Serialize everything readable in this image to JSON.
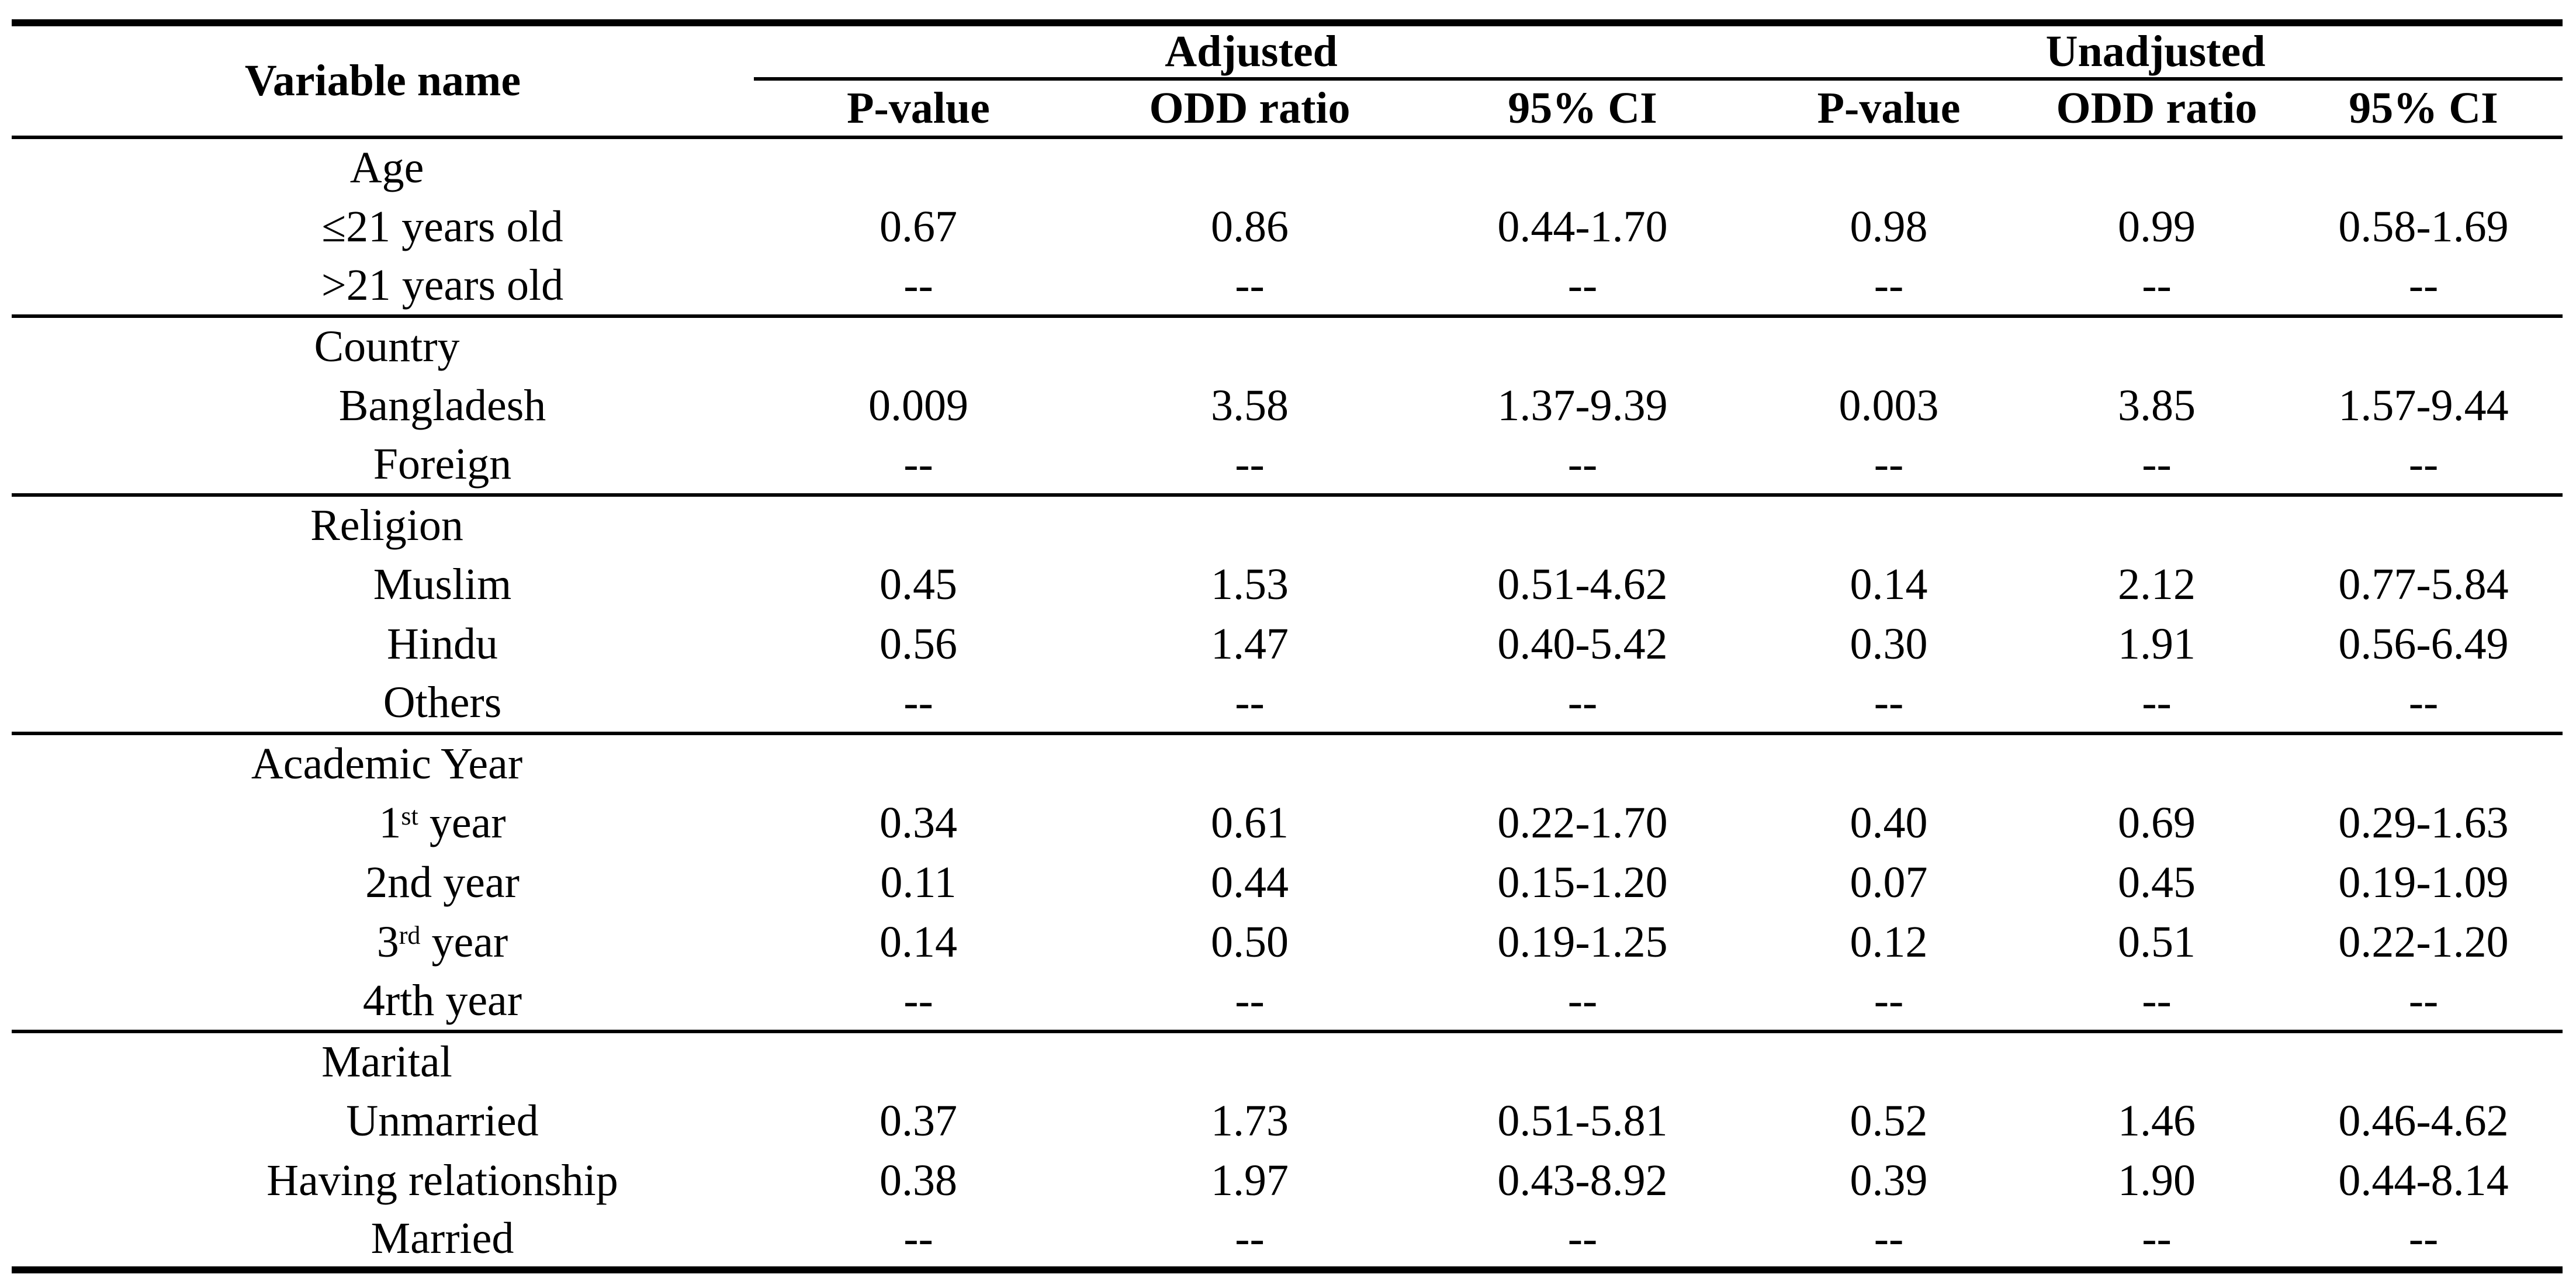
{
  "colors": {
    "background": "#ffffff",
    "text": "#000000",
    "rule": "#000000"
  },
  "table": {
    "title_column": "Variable name",
    "groups": [
      {
        "label": "Adjusted"
      },
      {
        "label": "Unadjusted"
      }
    ],
    "sub_headers": [
      "P-value",
      "ODD ratio",
      "95% CI",
      "P-value",
      "ODD ratio",
      "95% CI"
    ],
    "empty_marker": "--",
    "rows": [
      {
        "type": "group",
        "label": {
          "pre": "Age",
          "sup": "",
          "post": ""
        },
        "adj": [
          "",
          "",
          ""
        ],
        "unadj": [
          "",
          "",
          ""
        ],
        "section_end": false
      },
      {
        "type": "item",
        "label": {
          "pre": "≤21 years old",
          "sup": "",
          "post": ""
        },
        "adj": [
          "0.67",
          "0.86",
          "0.44-1.70"
        ],
        "unadj": [
          "0.98",
          "0.99",
          "0.58-1.69"
        ],
        "section_end": false
      },
      {
        "type": "item",
        "label": {
          "pre": ">21 years old",
          "sup": "",
          "post": ""
        },
        "adj": [
          "--",
          "--",
          "--"
        ],
        "unadj": [
          "--",
          "--",
          "--"
        ],
        "section_end": true
      },
      {
        "type": "group",
        "label": {
          "pre": "Country",
          "sup": "",
          "post": ""
        },
        "adj": [
          "",
          "",
          ""
        ],
        "unadj": [
          "",
          "",
          ""
        ],
        "section_end": false
      },
      {
        "type": "item",
        "label": {
          "pre": "Bangladesh",
          "sup": "",
          "post": ""
        },
        "adj": [
          "0.009",
          "3.58",
          "1.37-9.39"
        ],
        "unadj": [
          "0.003",
          "3.85",
          "1.57-9.44"
        ],
        "section_end": false
      },
      {
        "type": "item",
        "label": {
          "pre": "Foreign",
          "sup": "",
          "post": ""
        },
        "adj": [
          "--",
          "--",
          "--"
        ],
        "unadj": [
          "--",
          "--",
          "--"
        ],
        "section_end": true
      },
      {
        "type": "group",
        "label": {
          "pre": "Religion",
          "sup": "",
          "post": ""
        },
        "adj": [
          "",
          "",
          ""
        ],
        "unadj": [
          "",
          "",
          ""
        ],
        "section_end": false
      },
      {
        "type": "item",
        "label": {
          "pre": "Muslim",
          "sup": "",
          "post": ""
        },
        "adj": [
          "0.45",
          "1.53",
          "0.51-4.62"
        ],
        "unadj": [
          "0.14",
          "2.12",
          "0.77-5.84"
        ],
        "section_end": false
      },
      {
        "type": "item",
        "label": {
          "pre": "Hindu",
          "sup": "",
          "post": ""
        },
        "adj": [
          "0.56",
          "1.47",
          "0.40-5.42"
        ],
        "unadj": [
          "0.30",
          "1.91",
          "0.56-6.49"
        ],
        "section_end": false
      },
      {
        "type": "item",
        "label": {
          "pre": "Others",
          "sup": "",
          "post": ""
        },
        "adj": [
          "--",
          "--",
          "--"
        ],
        "unadj": [
          "--",
          "--",
          "--"
        ],
        "section_end": true
      },
      {
        "type": "group",
        "label": {
          "pre": "Academic Year",
          "sup": "",
          "post": ""
        },
        "adj": [
          "",
          "",
          ""
        ],
        "unadj": [
          "",
          "",
          ""
        ],
        "section_end": false
      },
      {
        "type": "item",
        "label": {
          "pre": "1",
          "sup": "st",
          "post": " year"
        },
        "adj": [
          "0.34",
          "0.61",
          "0.22-1.70"
        ],
        "unadj": [
          "0.40",
          "0.69",
          "0.29-1.63"
        ],
        "section_end": false
      },
      {
        "type": "item",
        "label": {
          "pre": "2nd year",
          "sup": "",
          "post": ""
        },
        "adj": [
          "0.11",
          "0.44",
          "0.15-1.20"
        ],
        "unadj": [
          "0.07",
          "0.45",
          "0.19-1.09"
        ],
        "section_end": false
      },
      {
        "type": "item",
        "label": {
          "pre": "3",
          "sup": "rd",
          "post": " year"
        },
        "adj": [
          "0.14",
          "0.50",
          "0.19-1.25"
        ],
        "unadj": [
          "0.12",
          "0.51",
          "0.22-1.20"
        ],
        "section_end": false
      },
      {
        "type": "item",
        "label": {
          "pre": "4rth year",
          "sup": "",
          "post": ""
        },
        "adj": [
          "--",
          "--",
          "--"
        ],
        "unadj": [
          "--",
          "--",
          "--"
        ],
        "section_end": true
      },
      {
        "type": "group",
        "label": {
          "pre": "Marital",
          "sup": "",
          "post": ""
        },
        "adj": [
          "",
          "",
          ""
        ],
        "unadj": [
          "",
          "",
          ""
        ],
        "section_end": false
      },
      {
        "type": "item",
        "label": {
          "pre": "Unmarried",
          "sup": "",
          "post": ""
        },
        "adj": [
          "0.37",
          "1.73",
          "0.51-5.81"
        ],
        "unadj": [
          "0.52",
          "1.46",
          "0.46-4.62"
        ],
        "section_end": false
      },
      {
        "type": "item",
        "label": {
          "pre": "Having relationship",
          "sup": "",
          "post": ""
        },
        "adj": [
          "0.38",
          "1.97",
          "0.43-8.92"
        ],
        "unadj": [
          "0.39",
          "1.90",
          "0.44-8.14"
        ],
        "section_end": false
      },
      {
        "type": "item",
        "label": {
          "pre": "Married",
          "sup": "",
          "post": ""
        },
        "adj": [
          "--",
          "--",
          "--"
        ],
        "unadj": [
          "--",
          "--",
          "--"
        ],
        "section_end": false
      }
    ]
  }
}
